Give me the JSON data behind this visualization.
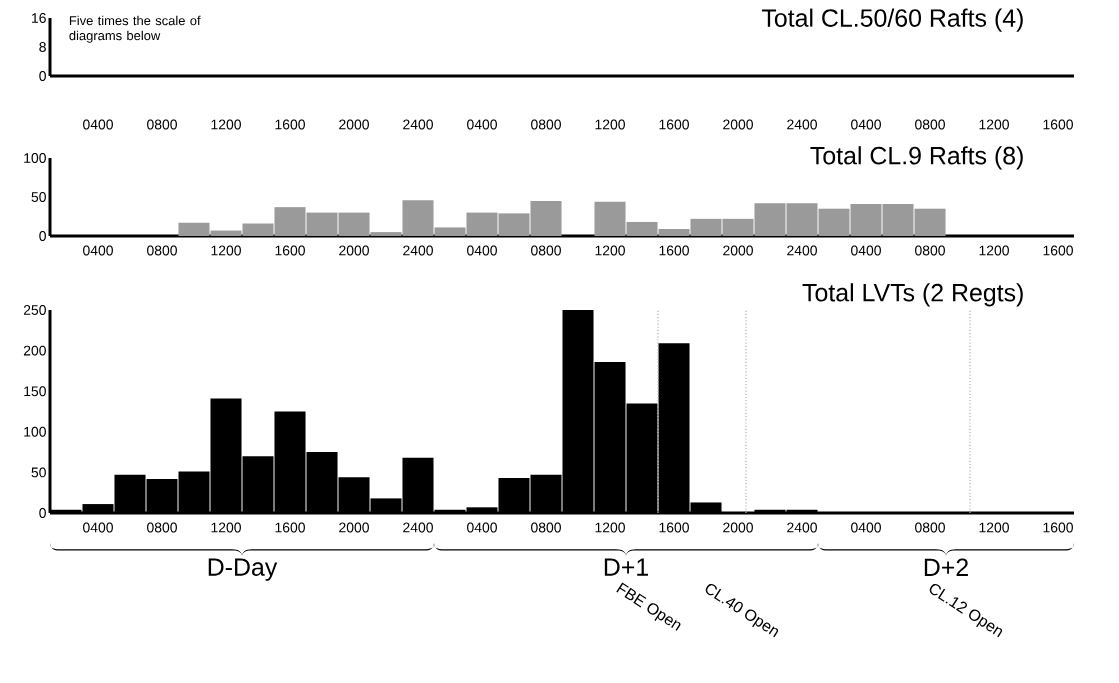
{
  "chart_data": [
    {
      "type": "bar",
      "title": "Total CL.50/60 Rafts (4)",
      "color": "#9a9a9a",
      "categories": [
        null,
        "0400",
        null,
        "0800",
        null,
        "1200",
        null,
        "1600",
        null,
        "2000",
        null,
        "2400",
        null,
        "0400",
        null,
        "0800",
        null,
        "1200",
        null,
        "1600",
        null,
        "2000",
        null,
        "2400",
        null,
        "0400",
        null,
        "0800",
        null,
        "1200",
        null,
        "1600"
      ],
      "values": [
        0,
        0,
        0,
        0,
        0,
        0,
        0,
        0,
        0,
        0,
        0,
        0,
        0,
        0,
        0,
        0,
        0,
        0,
        0,
        0,
        0,
        0,
        0,
        0,
        0,
        0,
        0,
        0,
        0,
        0,
        0,
        0
      ],
      "ylim": [
        0,
        16
      ],
      "yticks": [
        0,
        8,
        16
      ],
      "annotations": [
        "Five times the scale of diagrams below"
      ]
    },
    {
      "type": "bar",
      "title": "Total CL.9 Rafts (8)",
      "color": "#9a9a9a",
      "categories": [
        null,
        "0400",
        null,
        "0800",
        null,
        "1200",
        null,
        "1600",
        null,
        "2000",
        null,
        "2400",
        null,
        "0400",
        null,
        "0800",
        null,
        "1200",
        null,
        "1600",
        null,
        "2000",
        null,
        "2400",
        null,
        "0400",
        null,
        "0800",
        null,
        "1200",
        null,
        "1600"
      ],
      "values": [
        0,
        0,
        0,
        0,
        17,
        7,
        16,
        37,
        30,
        30,
        5,
        46,
        11,
        30,
        29,
        45,
        0,
        44,
        18,
        9,
        22,
        22,
        42,
        42,
        35,
        41,
        41,
        35,
        0,
        0,
        0,
        0
      ],
      "ylim": [
        0,
        100
      ],
      "yticks": [
        0,
        50,
        100
      ]
    },
    {
      "type": "bar",
      "title": "Total LVTs (2 Regts)",
      "color": "#000000",
      "categories": [
        null,
        "0400",
        null,
        "0800",
        null,
        "1200",
        null,
        "1600",
        null,
        "2000",
        null,
        "2400",
        null,
        "0400",
        null,
        "0800",
        null,
        "1200",
        null,
        "1600",
        null,
        "2000",
        null,
        "2400",
        null,
        "0400",
        null,
        "0800",
        null,
        "1200",
        null,
        "1600"
      ],
      "values": [
        4,
        11,
        47,
        42,
        51,
        141,
        70,
        125,
        75,
        44,
        18,
        68,
        4,
        7,
        43,
        47,
        250,
        186,
        135,
        209,
        13,
        1,
        4,
        4,
        0,
        0,
        0,
        0,
        0,
        0,
        0,
        0
      ],
      "ylim": [
        0,
        250
      ],
      "yticks": [
        0,
        50,
        100,
        150,
        200,
        250
      ],
      "annotations": [
        "D-Day",
        "D+1",
        "D+2",
        "FBE Open",
        "CL.40 Open",
        "CL.12 Open"
      ]
    }
  ]
}
